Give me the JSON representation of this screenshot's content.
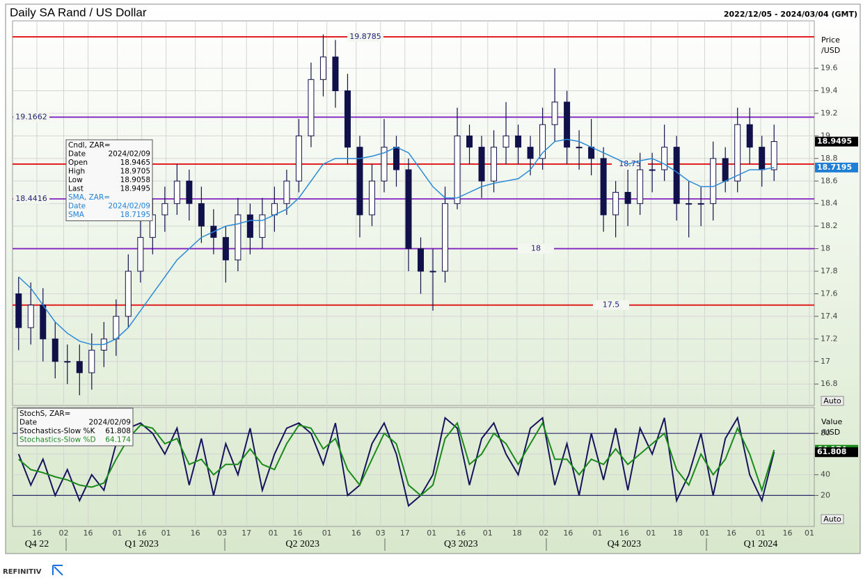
{
  "title": "Daily SA Rand / US Dollar",
  "subtitle": "2022/12/05 - 2024/03/04 (GMT)",
  "footer": "REFINITIV",
  "x_axis": {
    "xlim": [
      0,
      329
    ],
    "xticks": [
      {
        "value": 10,
        "label": "16"
      },
      {
        "value": 21,
        "label": "02"
      },
      {
        "value": 31,
        "label": "16"
      },
      {
        "value": 43,
        "label": "01"
      },
      {
        "value": 53,
        "label": "16"
      },
      {
        "value": 63,
        "label": "01"
      },
      {
        "value": 75,
        "label": "16"
      },
      {
        "value": 86,
        "label": "03"
      },
      {
        "value": 96,
        "label": "17"
      },
      {
        "value": 107,
        "label": "01"
      },
      {
        "value": 117,
        "label": "16"
      },
      {
        "value": 129,
        "label": "01"
      },
      {
        "value": 141,
        "label": "16"
      },
      {
        "value": 151,
        "label": "03"
      },
      {
        "value": 161,
        "label": "17"
      },
      {
        "value": 172,
        "label": "01"
      },
      {
        "value": 184,
        "label": "16"
      },
      {
        "value": 195,
        "label": "01"
      },
      {
        "value": 207,
        "label": "18"
      },
      {
        "value": 218,
        "label": "02"
      },
      {
        "value": 228,
        "label": "16"
      },
      {
        "value": 240,
        "label": "01"
      },
      {
        "value": 251,
        "label": "16"
      },
      {
        "value": 262,
        "label": "01"
      },
      {
        "value": 273,
        "label": "18"
      },
      {
        "value": 284,
        "label": "01"
      },
      {
        "value": 295,
        "label": "16"
      },
      {
        "value": 307,
        "label": "01"
      },
      {
        "value": 318,
        "label": "16"
      },
      {
        "value": 327,
        "label": "01"
      }
    ],
    "quarters": [
      {
        "value": 10,
        "label": "Q4 22"
      },
      {
        "value": 53,
        "label": "Q1 2023"
      },
      {
        "value": 119,
        "label": "Q2 2023"
      },
      {
        "value": 184,
        "label": "Q3 2023"
      },
      {
        "value": 251,
        "label": "Q4 2023"
      },
      {
        "value": 307,
        "label": "Q1 2024"
      }
    ]
  },
  "chart_data": [
    {
      "type": "candlestick",
      "y_label": [
        "Price",
        "/USD"
      ],
      "auto": "Auto",
      "color": "#10104a",
      "ylim": [
        16.61,
        20.02
      ],
      "yticks": [
        16.8,
        17,
        17.2,
        17.4,
        17.6,
        17.8,
        18,
        18.2,
        18.4,
        18.6,
        18.8,
        19,
        19.2,
        19.4,
        19.6
      ],
      "grid": true,
      "x": [
        2.5,
        7.5,
        12.5,
        17.5,
        22.5,
        27.5,
        32.5,
        37.5,
        42.5,
        47.5,
        52.5,
        57.5,
        62.5,
        67.5,
        72.5,
        77.5,
        82.5,
        87.5,
        92.5,
        97.5,
        102.5,
        107.5,
        112.5,
        117.5,
        122.5,
        127.5,
        132.5,
        137.5,
        142.5,
        147.5,
        152.5,
        157.5,
        162.5,
        167.5,
        172.5,
        177.5,
        182.5,
        187.5,
        192.5,
        197.5,
        202.5,
        207.5,
        212.5,
        217.5,
        222.5,
        227.5,
        232.5,
        237.5,
        242.5,
        247.5,
        252.5,
        257.5,
        262.5,
        267.5,
        272.5,
        277.5,
        282.5,
        287.5,
        292.5,
        297.5,
        302.5,
        307.5,
        312.5
      ],
      "open": [
        17.6,
        17.3,
        17.5,
        17.2,
        17.0,
        17.0,
        16.9,
        17.1,
        17.2,
        17.4,
        17.8,
        18.1,
        18.3,
        18.4,
        18.6,
        18.4,
        18.2,
        18.1,
        17.9,
        18.3,
        18.1,
        18.3,
        18.4,
        18.6,
        19.0,
        19.5,
        19.7,
        19.4,
        18.9,
        18.3,
        18.6,
        18.9,
        18.7,
        18.0,
        17.8,
        17.8,
        18.4,
        19.0,
        18.9,
        18.6,
        18.9,
        19.0,
        18.9,
        18.8,
        19.1,
        19.3,
        18.9,
        18.9,
        18.8,
        18.3,
        18.5,
        18.4,
        18.7,
        18.7,
        18.9,
        18.4,
        18.4,
        18.4,
        18.8,
        18.6,
        19.1,
        18.9,
        18.7
      ],
      "high": [
        17.75,
        17.7,
        17.65,
        17.35,
        17.15,
        17.15,
        17.25,
        17.35,
        17.55,
        17.95,
        18.25,
        18.45,
        18.55,
        18.75,
        18.7,
        18.55,
        18.35,
        18.2,
        18.45,
        18.4,
        18.45,
        18.55,
        18.7,
        19.15,
        19.65,
        19.9,
        19.85,
        19.55,
        19.0,
        18.75,
        19.15,
        19.0,
        18.8,
        18.1,
        18.0,
        18.55,
        19.25,
        19.1,
        19.0,
        19.05,
        19.3,
        19.1,
        19.0,
        19.25,
        19.6,
        19.4,
        19.05,
        19.15,
        18.9,
        18.6,
        18.7,
        18.85,
        18.85,
        19.1,
        19.0,
        18.6,
        18.55,
        18.95,
        18.9,
        19.25,
        19.25,
        19.0,
        19.1
      ],
      "low": [
        17.1,
        17.15,
        17.0,
        16.85,
        16.8,
        16.7,
        16.75,
        16.95,
        17.05,
        17.3,
        17.7,
        17.95,
        18.15,
        18.3,
        18.25,
        18.05,
        17.95,
        17.7,
        17.8,
        17.95,
        18.0,
        18.15,
        18.3,
        18.5,
        18.9,
        19.35,
        19.25,
        18.75,
        18.1,
        18.2,
        18.5,
        18.55,
        17.8,
        17.6,
        17.45,
        17.7,
        18.35,
        18.75,
        18.45,
        18.5,
        18.75,
        18.75,
        18.65,
        18.7,
        18.95,
        18.75,
        18.7,
        18.65,
        18.15,
        18.1,
        18.2,
        18.3,
        18.5,
        18.6,
        18.25,
        18.1,
        18.2,
        18.25,
        18.5,
        18.5,
        18.75,
        18.55,
        18.6
      ],
      "close": [
        17.3,
        17.5,
        17.2,
        17.0,
        17.0,
        16.9,
        17.1,
        17.2,
        17.4,
        17.8,
        18.1,
        18.3,
        18.4,
        18.6,
        18.4,
        18.2,
        18.1,
        17.9,
        18.3,
        18.1,
        18.3,
        18.4,
        18.6,
        19.0,
        19.5,
        19.7,
        19.4,
        18.9,
        18.3,
        18.6,
        18.9,
        18.7,
        18.0,
        17.8,
        17.8,
        18.4,
        19.0,
        18.9,
        18.6,
        18.9,
        19.0,
        18.9,
        18.8,
        19.1,
        19.3,
        18.9,
        18.9,
        18.8,
        18.3,
        18.5,
        18.4,
        18.7,
        18.7,
        18.9,
        18.4,
        18.4,
        18.4,
        18.8,
        18.6,
        19.1,
        18.9,
        18.7,
        18.95
      ],
      "sma": {
        "color": "#2a8ad8",
        "values": [
          17.75,
          17.65,
          17.5,
          17.35,
          17.25,
          17.18,
          17.15,
          17.15,
          17.2,
          17.3,
          17.45,
          17.6,
          17.75,
          17.9,
          18.0,
          18.1,
          18.15,
          18.2,
          18.22,
          18.25,
          18.25,
          18.3,
          18.35,
          18.45,
          18.6,
          18.75,
          18.8,
          18.8,
          18.8,
          18.82,
          18.85,
          18.9,
          18.85,
          18.7,
          18.55,
          18.45,
          18.45,
          18.5,
          18.55,
          18.58,
          18.6,
          18.62,
          18.7,
          18.85,
          18.95,
          18.97,
          18.95,
          18.9,
          18.85,
          18.8,
          18.75,
          18.78,
          18.8,
          18.75,
          18.68,
          18.6,
          18.55,
          18.55,
          18.6,
          18.65,
          18.7,
          18.7,
          18.72
        ]
      },
      "levels": [
        {
          "value": 19.8785,
          "color": "#e01010"
        },
        {
          "value": 19.1662,
          "color": "#8020c0"
        },
        {
          "value": 18.75,
          "color": "#e01010"
        },
        {
          "value": 18.4416,
          "color": "#8020c0"
        },
        {
          "value": 18,
          "color": "#8020c0"
        },
        {
          "value": 17.5,
          "color": "#e01010"
        }
      ],
      "last_price": 18.9495,
      "sma_last": 18.7195,
      "info": {
        "header": "Cndl, ZAR=",
        "rows": [
          [
            "Date",
            "2024/02/09"
          ],
          [
            "Open",
            "18.9465"
          ],
          [
            "High",
            "18.9705"
          ],
          [
            "Low",
            "18.9058"
          ]
        ],
        "last_label": "Last",
        "sma_header": "SMA, ZAR=",
        "sma_rows": [
          [
            "Date",
            "2024/02/09"
          ]
        ],
        "sma_label": "SMA"
      }
    },
    {
      "type": "line",
      "y_label": [
        "Value",
        "/USD"
      ],
      "auto": "Auto",
      "ylim": [
        -10,
        105
      ],
      "yticks": [
        20,
        40,
        60,
        80
      ],
      "levels": [
        20,
        80
      ],
      "series": [
        {
          "name": "Stochastics-Slow %K",
          "color": "#14145a",
          "values": [
            60,
            30,
            55,
            20,
            45,
            15,
            40,
            25,
            70,
            85,
            90,
            80,
            60,
            85,
            30,
            75,
            20,
            70,
            40,
            85,
            25,
            60,
            85,
            90,
            80,
            50,
            90,
            20,
            30,
            70,
            90,
            60,
            10,
            20,
            40,
            95,
            85,
            30,
            75,
            90,
            60,
            40,
            85,
            95,
            30,
            70,
            20,
            80,
            35,
            85,
            25,
            85,
            60,
            95,
            15,
            40,
            80,
            20,
            75,
            95,
            40,
            15,
            62
          ]
        },
        {
          "name": "Stochastics-Slow %D",
          "color": "#1a8a1a",
          "values": [
            55,
            45,
            42,
            38,
            35,
            30,
            28,
            32,
            55,
            75,
            88,
            85,
            70,
            75,
            50,
            55,
            40,
            50,
            50,
            65,
            50,
            45,
            70,
            88,
            85,
            65,
            75,
            45,
            30,
            55,
            80,
            70,
            30,
            20,
            30,
            75,
            90,
            50,
            60,
            80,
            70,
            50,
            70,
            90,
            55,
            55,
            40,
            55,
            50,
            65,
            50,
            60,
            70,
            80,
            45,
            30,
            60,
            40,
            55,
            85,
            60,
            25,
            64
          ]
        }
      ],
      "k_last": 61.808,
      "d_last": 64.174,
      "info": {
        "header": "StochS, ZAR=",
        "rows": [
          [
            "Date",
            "2024/02/09"
          ]
        ]
      }
    }
  ]
}
